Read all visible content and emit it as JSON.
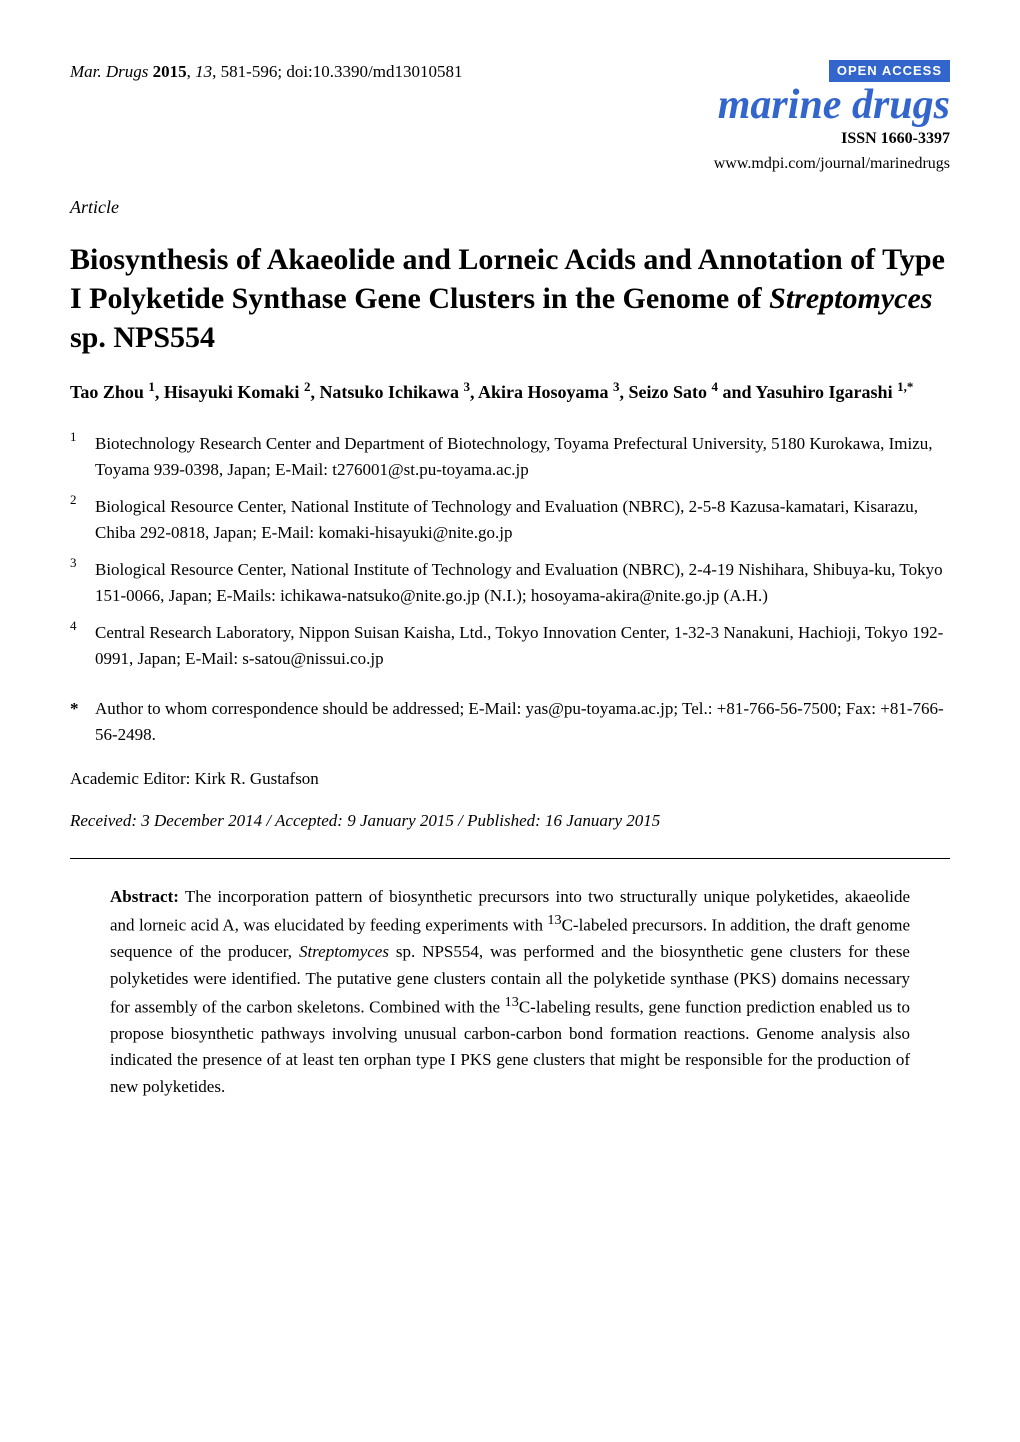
{
  "citation": {
    "journal_abbrev": "Mar. Drugs",
    "year": "2015",
    "volume": "13",
    "pages": "581-596",
    "doi": "doi:10.3390/md13010581"
  },
  "journal_block": {
    "open_access": "OPEN ACCESS",
    "name": "marine drugs",
    "issn": "ISSN 1660-3397",
    "url": "www.mdpi.com/journal/marinedrugs",
    "open_access_bg": "#3366cc",
    "open_access_color": "#ffffff",
    "name_color": "#3366cc"
  },
  "article_type": "Article",
  "title": {
    "line1": "Biosynthesis of Akaeolide and Lorneic Acids and Annotation of Type I Polyketide Synthase Gene Clusters in the Genome of ",
    "species": "Streptomyces",
    "line2": " sp. NPS554"
  },
  "authors": [
    {
      "name": "Tao Zhou",
      "sup": "1"
    },
    {
      "name": "Hisayuki Komaki",
      "sup": "2"
    },
    {
      "name": "Natsuko Ichikawa",
      "sup": "3"
    },
    {
      "name": "Akira Hosoyama",
      "sup": "3"
    },
    {
      "name": "Seizo Sato",
      "sup": "4"
    },
    {
      "name": "Yasuhiro Igarashi",
      "sup": "1,*"
    }
  ],
  "author_separator": ", ",
  "author_last_separator": " and ",
  "affiliations": [
    {
      "num": "1",
      "text": "Biotechnology Research Center and Department of Biotechnology, Toyama Prefectural University, 5180 Kurokawa, Imizu, Toyama 939-0398, Japan; E-Mail: t276001@st.pu-toyama.ac.jp"
    },
    {
      "num": "2",
      "text": "Biological Resource Center, National Institute of Technology and Evaluation (NBRC), 2-5-8 Kazusa-kamatari, Kisarazu, Chiba 292-0818, Japan; E-Mail: komaki-hisayuki@nite.go.jp"
    },
    {
      "num": "3",
      "text": "Biological Resource Center, National Institute of Technology and Evaluation (NBRC), 2-4-19 Nishihara, Shibuya-ku, Tokyo 151-0066, Japan; E-Mails: ichikawa-natsuko@nite.go.jp (N.I.); hosoyama-akira@nite.go.jp (A.H.)"
    },
    {
      "num": "4",
      "text": "Central Research Laboratory, Nippon Suisan Kaisha, Ltd., Tokyo Innovation Center, 1-32-3 Nanakuni, Hachioji, Tokyo 192-0991, Japan; E-Mail: s-satou@nissui.co.jp"
    }
  ],
  "corresponding": {
    "star": "*",
    "text": "Author to whom correspondence should be addressed; E-Mail: yas@pu-toyama.ac.jp; Tel.: +81-766-56-7500; Fax: +81-766-56-2498."
  },
  "editor": "Academic Editor: Kirk R. Gustafson",
  "dates": "Received: 3 December 2014 / Accepted: 9 January 2015 / Published: 16 January 2015",
  "abstract": {
    "label": "Abstract:",
    "text_pre": " The incorporation pattern of biosynthetic precursors into two structurally unique polyketides, akaeolide and lorneic acid A, was elucidated by feeding experiments with ",
    "c13_1": "13",
    "text_1a": "C-labeled precursors. In addition, the draft genome sequence of the producer, ",
    "species": "Streptomyces",
    "text_1b": " sp. NPS554, was performed and the biosynthetic gene clusters for these polyketides were identified. The putative gene clusters contain all the polyketide synthase (PKS) domains necessary for assembly of the carbon skeletons. Combined with the ",
    "c13_2": "13",
    "text_2": "C-labeling results, gene function prediction enabled us to propose biosynthetic pathways involving unusual carbon-carbon bond formation reactions. Genome analysis also indicated the presence of at least ten orphan type I PKS gene clusters that might be responsible for the production of new polyketides."
  },
  "styles": {
    "body_bg": "#ffffff",
    "text_color": "#000000",
    "title_fontsize": 30,
    "author_fontsize": 18,
    "body_fontsize": 17,
    "journal_name_fontsize": 42,
    "hr_color": "#000000"
  }
}
